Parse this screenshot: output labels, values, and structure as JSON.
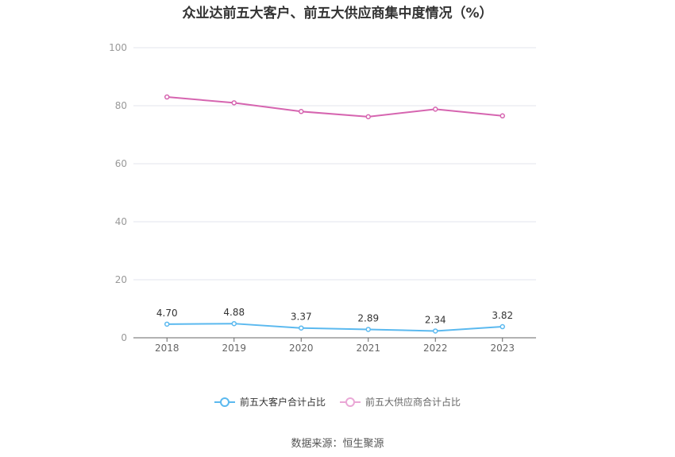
{
  "chart_data": {
    "type": "line",
    "title": "众业达前五大客户、前五大供应商集中度情况（%）",
    "categories": [
      "2018",
      "2019",
      "2020",
      "2021",
      "2022",
      "2023"
    ],
    "ylim": [
      0,
      100
    ],
    "yticks": [
      "0",
      "20",
      "40",
      "60",
      "80",
      "100"
    ],
    "grid": true,
    "legend_position": "bottom",
    "series": [
      {
        "name": "前五大客户合计占比",
        "color": "#5bb9ef",
        "values": [
          4.7,
          4.88,
          3.37,
          2.89,
          2.34,
          3.82
        ],
        "labels": [
          "4.70",
          "4.88",
          "3.37",
          "2.89",
          "2.34",
          "3.82"
        ]
      },
      {
        "name": "前五大供应商合计占比",
        "color": "#d665b0",
        "values": [
          83.0,
          81.0,
          78.0,
          76.2,
          78.8,
          76.5
        ]
      }
    ]
  },
  "source": "数据来源：恒生聚源"
}
